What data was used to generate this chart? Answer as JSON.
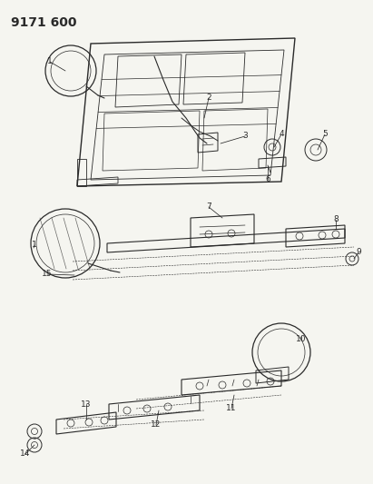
{
  "title": "9171 600",
  "bg_color": "#f5f5f0",
  "line_color": "#2a2a2a",
  "title_fontsize": 10,
  "label_fontsize": 6.5,
  "fig_width": 4.11,
  "fig_height": 5.33
}
